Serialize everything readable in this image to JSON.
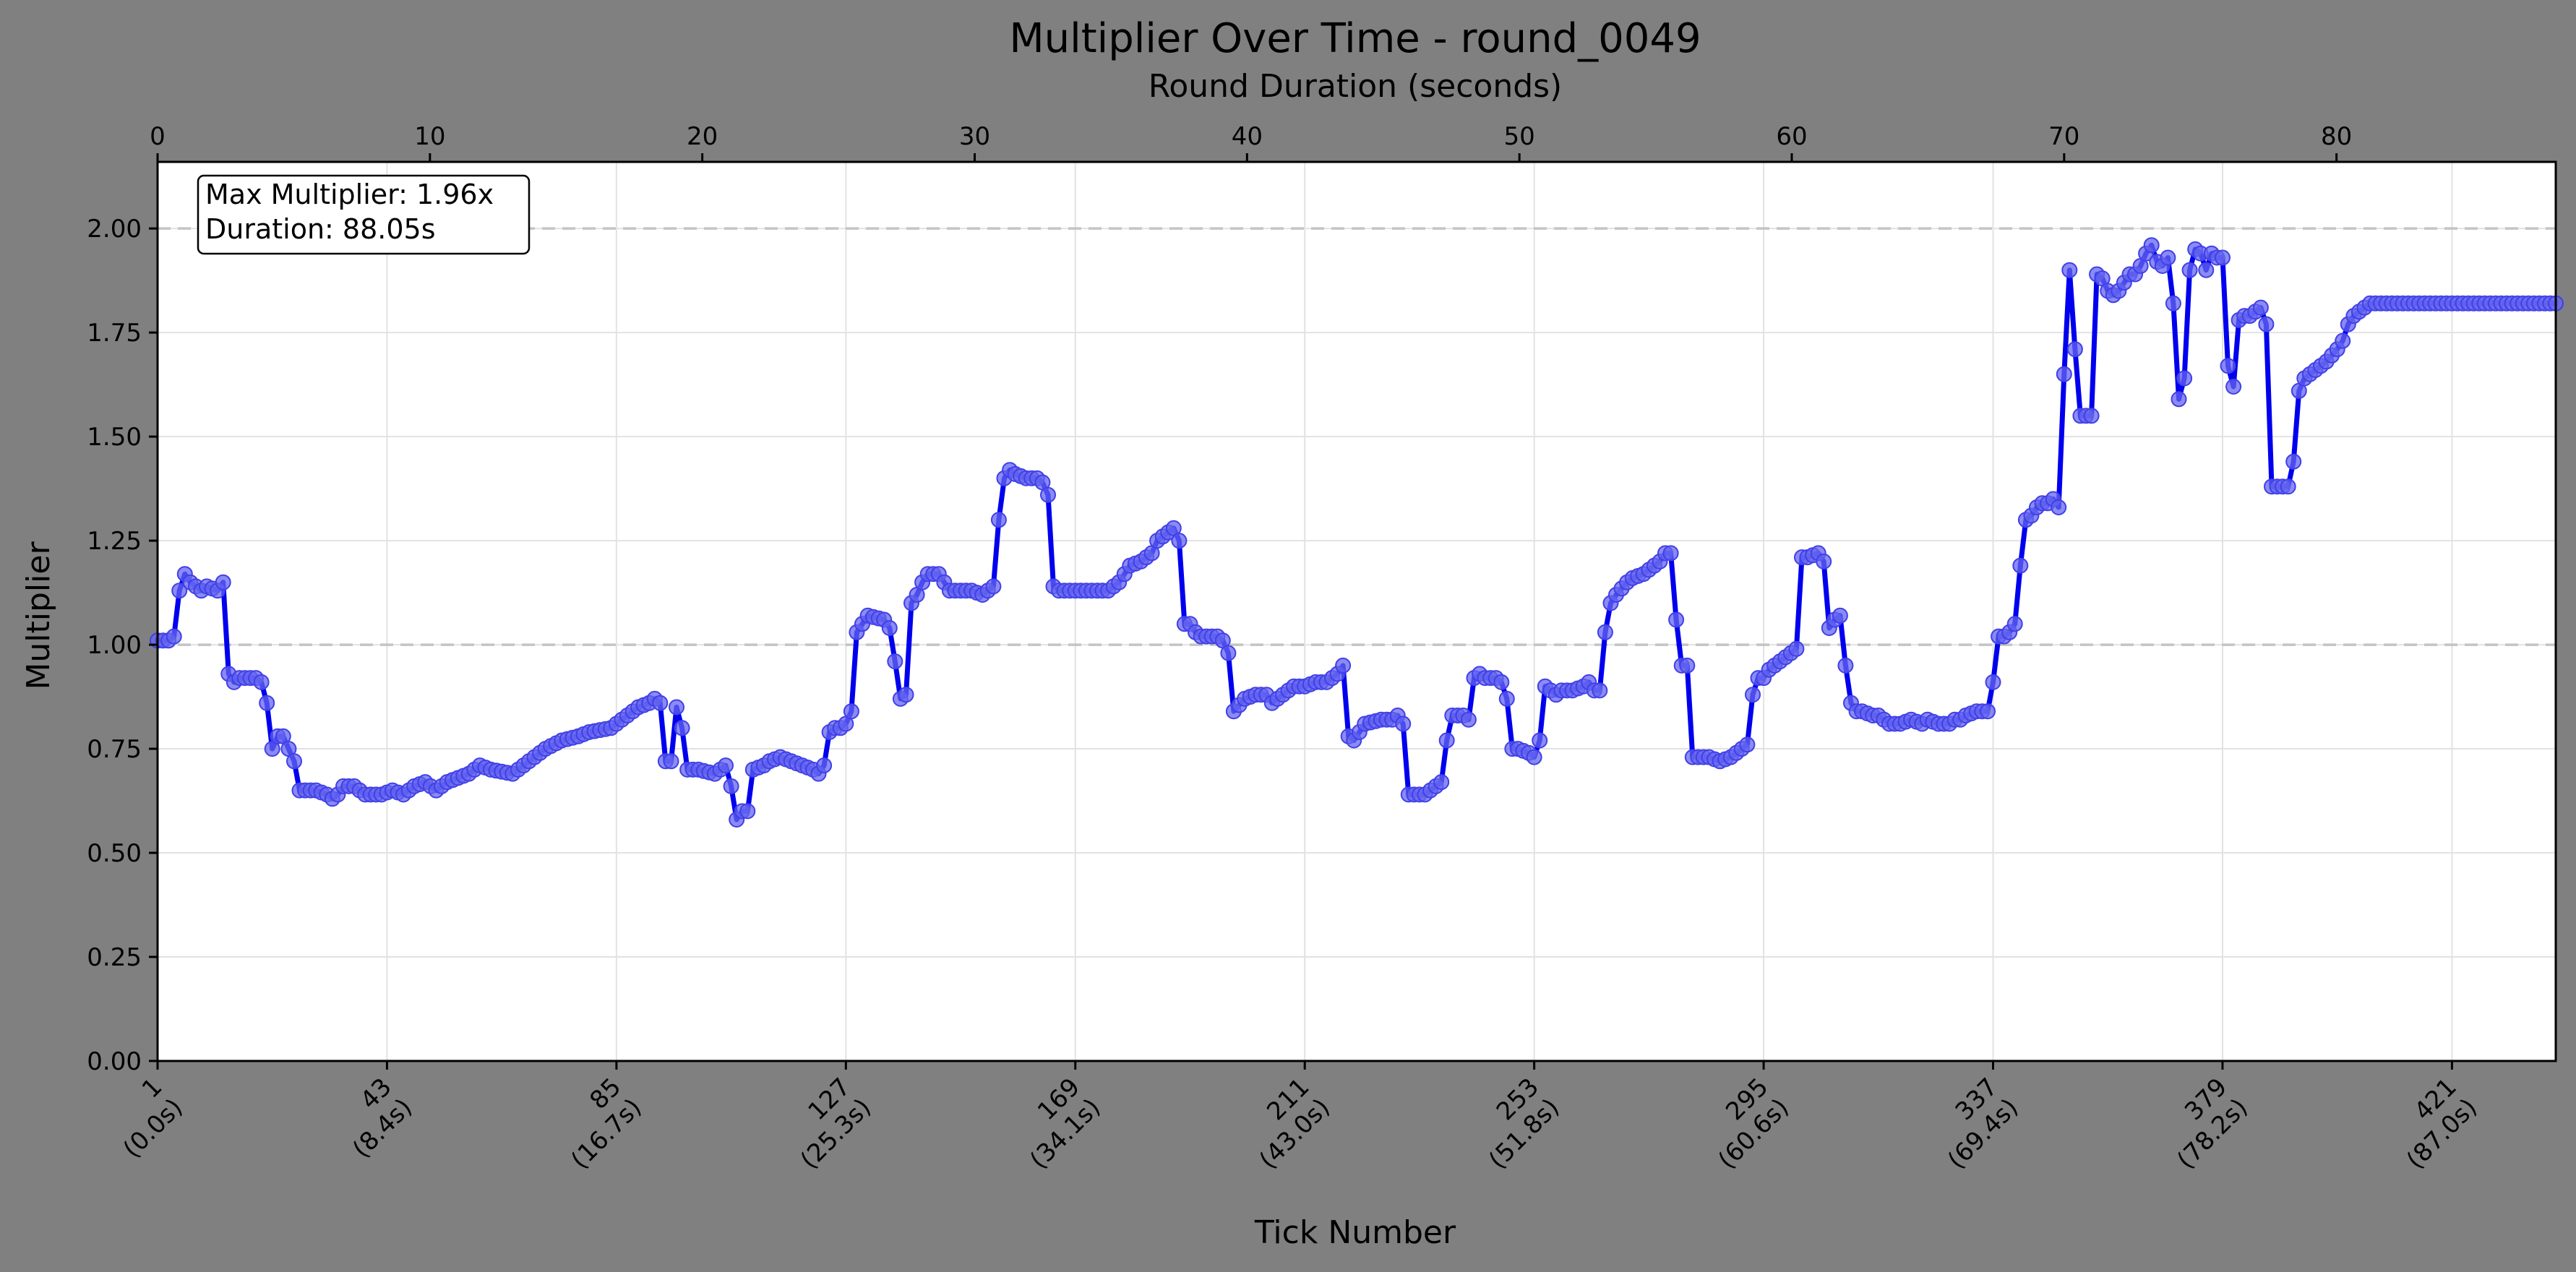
{
  "chart_data": {
    "type": "line",
    "title": "Multiplier Over Time - round_0049",
    "top_xlabel": "Round Duration (seconds)",
    "xlabel": "Tick Number",
    "ylabel": "Multiplier",
    "xlim_ticks": [
      1,
      440
    ],
    "xlim_seconds": [
      0,
      88.05
    ],
    "ylim": [
      0,
      2.16
    ],
    "y_ticks": [
      "0.00",
      "0.25",
      "0.50",
      "0.75",
      "1.00",
      "1.25",
      "1.50",
      "1.75",
      "2.00"
    ],
    "x_ticks": [
      {
        "tick": 1,
        "label": "1",
        "sublabel": "(0.0s)"
      },
      {
        "tick": 43,
        "label": "43",
        "sublabel": "(8.4s)"
      },
      {
        "tick": 85,
        "label": "85",
        "sublabel": "(16.7s)"
      },
      {
        "tick": 127,
        "label": "127",
        "sublabel": "(25.3s)"
      },
      {
        "tick": 169,
        "label": "169",
        "sublabel": "(34.1s)"
      },
      {
        "tick": 211,
        "label": "211",
        "sublabel": "(43.0s)"
      },
      {
        "tick": 253,
        "label": "253",
        "sublabel": "(51.8s)"
      },
      {
        "tick": 295,
        "label": "295",
        "sublabel": "(60.6s)"
      },
      {
        "tick": 337,
        "label": "337",
        "sublabel": "(69.4s)"
      },
      {
        "tick": 379,
        "label": "379",
        "sublabel": "(78.2s)"
      },
      {
        "tick": 421,
        "label": "421",
        "sublabel": "(87.0s)"
      }
    ],
    "top_x_ticks": [
      "0",
      "10",
      "20",
      "30",
      "40",
      "50",
      "60",
      "70",
      "80"
    ],
    "reference_lines": [
      1.0,
      2.0
    ],
    "grid": true,
    "series_color": "#0000ee",
    "marker_color": "#6464f0",
    "annotation": {
      "line1": "Max Multiplier: 1.96x",
      "line2": "Duration: 88.05s",
      "placement": "top-left"
    },
    "keypoints": [
      [
        1,
        1.01
      ],
      [
        3,
        1.01
      ],
      [
        4,
        1.02
      ],
      [
        5,
        1.13
      ],
      [
        6,
        1.17
      ],
      [
        7,
        1.15
      ],
      [
        9,
        1.13
      ],
      [
        10,
        1.14
      ],
      [
        12,
        1.13
      ],
      [
        13,
        1.15
      ],
      [
        14,
        0.93
      ],
      [
        15,
        0.91
      ],
      [
        16,
        0.92
      ],
      [
        19,
        0.92
      ],
      [
        20,
        0.91
      ],
      [
        21,
        0.86
      ],
      [
        22,
        0.75
      ],
      [
        23,
        0.78
      ],
      [
        24,
        0.78
      ],
      [
        26,
        0.72
      ],
      [
        27,
        0.65
      ],
      [
        30,
        0.65
      ],
      [
        32,
        0.64
      ],
      [
        33,
        0.63
      ],
      [
        34,
        0.64
      ],
      [
        35,
        0.66
      ],
      [
        37,
        0.66
      ],
      [
        39,
        0.64
      ],
      [
        42,
        0.64
      ],
      [
        44,
        0.65
      ],
      [
        46,
        0.64
      ],
      [
        48,
        0.66
      ],
      [
        50,
        0.67
      ],
      [
        52,
        0.65
      ],
      [
        54,
        0.67
      ],
      [
        56,
        0.68
      ],
      [
        58,
        0.69
      ],
      [
        60,
        0.71
      ],
      [
        62,
        0.7
      ],
      [
        66,
        0.69
      ],
      [
        68,
        0.71
      ],
      [
        70,
        0.73
      ],
      [
        72,
        0.75
      ],
      [
        75,
        0.77
      ],
      [
        78,
        0.78
      ],
      [
        80,
        0.79
      ],
      [
        84,
        0.8
      ],
      [
        87,
        0.83
      ],
      [
        89,
        0.85
      ],
      [
        91,
        0.86
      ],
      [
        92,
        0.87
      ],
      [
        93,
        0.86
      ],
      [
        94,
        0.72
      ],
      [
        95,
        0.72
      ],
      [
        96,
        0.85
      ],
      [
        97,
        0.8
      ],
      [
        98,
        0.7
      ],
      [
        100,
        0.7
      ],
      [
        103,
        0.69
      ],
      [
        104,
        0.7
      ],
      [
        105,
        0.71
      ],
      [
        106,
        0.66
      ],
      [
        107,
        0.58
      ],
      [
        108,
        0.6
      ],
      [
        109,
        0.6
      ],
      [
        110,
        0.7
      ],
      [
        112,
        0.71
      ],
      [
        113,
        0.72
      ],
      [
        115,
        0.73
      ],
      [
        117,
        0.72
      ],
      [
        119,
        0.71
      ],
      [
        121,
        0.7
      ],
      [
        122,
        0.69
      ],
      [
        123,
        0.71
      ],
      [
        124,
        0.79
      ],
      [
        125,
        0.8
      ],
      [
        126,
        0.8
      ],
      [
        127,
        0.81
      ],
      [
        128,
        0.84
      ],
      [
        129,
        1.03
      ],
      [
        130,
        1.05
      ],
      [
        131,
        1.07
      ],
      [
        134,
        1.06
      ],
      [
        135,
        1.04
      ],
      [
        136,
        0.96
      ],
      [
        137,
        0.87
      ],
      [
        138,
        0.88
      ],
      [
        139,
        1.1
      ],
      [
        140,
        1.12
      ],
      [
        141,
        1.15
      ],
      [
        142,
        1.17
      ],
      [
        144,
        1.17
      ],
      [
        145,
        1.15
      ],
      [
        146,
        1.13
      ],
      [
        148,
        1.13
      ],
      [
        150,
        1.13
      ],
      [
        152,
        1.12
      ],
      [
        154,
        1.14
      ],
      [
        155,
        1.3
      ],
      [
        156,
        1.4
      ],
      [
        157,
        1.42
      ],
      [
        158,
        1.41
      ],
      [
        160,
        1.4
      ],
      [
        162,
        1.4
      ],
      [
        163,
        1.39
      ],
      [
        164,
        1.36
      ],
      [
        165,
        1.14
      ],
      [
        166,
        1.13
      ],
      [
        169,
        1.13
      ],
      [
        171,
        1.13
      ],
      [
        173,
        1.13
      ],
      [
        175,
        1.13
      ],
      [
        177,
        1.15
      ],
      [
        178,
        1.17
      ],
      [
        179,
        1.19
      ],
      [
        181,
        1.2
      ],
      [
        183,
        1.22
      ],
      [
        184,
        1.25
      ],
      [
        186,
        1.27
      ],
      [
        187,
        1.28
      ],
      [
        188,
        1.25
      ],
      [
        189,
        1.05
      ],
      [
        190,
        1.05
      ],
      [
        191,
        1.03
      ],
      [
        192,
        1.02
      ],
      [
        195,
        1.02
      ],
      [
        196,
        1.01
      ],
      [
        197,
        0.98
      ],
      [
        198,
        0.84
      ],
      [
        200,
        0.87
      ],
      [
        202,
        0.88
      ],
      [
        204,
        0.88
      ],
      [
        205,
        0.86
      ],
      [
        206,
        0.87
      ],
      [
        208,
        0.89
      ],
      [
        209,
        0.9
      ],
      [
        211,
        0.9
      ],
      [
        213,
        0.91
      ],
      [
        215,
        0.91
      ],
      [
        216,
        0.92
      ],
      [
        217,
        0.93
      ],
      [
        218,
        0.95
      ],
      [
        219,
        0.78
      ],
      [
        220,
        0.77
      ],
      [
        221,
        0.79
      ],
      [
        222,
        0.81
      ],
      [
        225,
        0.82
      ],
      [
        227,
        0.82
      ],
      [
        228,
        0.83
      ],
      [
        229,
        0.81
      ],
      [
        230,
        0.64
      ],
      [
        231,
        0.64
      ],
      [
        233,
        0.64
      ],
      [
        235,
        0.66
      ],
      [
        236,
        0.67
      ],
      [
        237,
        0.77
      ],
      [
        238,
        0.83
      ],
      [
        240,
        0.83
      ],
      [
        241,
        0.82
      ],
      [
        242,
        0.92
      ],
      [
        243,
        0.93
      ],
      [
        244,
        0.92
      ],
      [
        246,
        0.92
      ],
      [
        247,
        0.91
      ],
      [
        248,
        0.87
      ],
      [
        249,
        0.75
      ],
      [
        250,
        0.75
      ],
      [
        252,
        0.74
      ],
      [
        253,
        0.73
      ],
      [
        254,
        0.77
      ],
      [
        255,
        0.9
      ],
      [
        256,
        0.89
      ],
      [
        257,
        0.88
      ],
      [
        258,
        0.89
      ],
      [
        260,
        0.89
      ],
      [
        262,
        0.9
      ],
      [
        263,
        0.91
      ],
      [
        264,
        0.89
      ],
      [
        265,
        0.89
      ],
      [
        266,
        1.03
      ],
      [
        267,
        1.1
      ],
      [
        268,
        1.12
      ],
      [
        270,
        1.15
      ],
      [
        271,
        1.16
      ],
      [
        273,
        1.17
      ],
      [
        274,
        1.18
      ],
      [
        275,
        1.19
      ],
      [
        276,
        1.2
      ],
      [
        277,
        1.22
      ],
      [
        278,
        1.22
      ],
      [
        279,
        1.06
      ],
      [
        280,
        0.95
      ],
      [
        281,
        0.95
      ],
      [
        282,
        0.73
      ],
      [
        283,
        0.73
      ],
      [
        285,
        0.73
      ],
      [
        287,
        0.72
      ],
      [
        289,
        0.73
      ],
      [
        290,
        0.74
      ],
      [
        291,
        0.75
      ],
      [
        292,
        0.76
      ],
      [
        293,
        0.88
      ],
      [
        294,
        0.92
      ],
      [
        295,
        0.92
      ],
      [
        296,
        0.94
      ],
      [
        298,
        0.96
      ],
      [
        299,
        0.97
      ],
      [
        300,
        0.98
      ],
      [
        301,
        0.99
      ],
      [
        302,
        1.21
      ],
      [
        303,
        1.21
      ],
      [
        305,
        1.22
      ],
      [
        306,
        1.2
      ],
      [
        307,
        1.04
      ],
      [
        308,
        1.06
      ],
      [
        309,
        1.07
      ],
      [
        310,
        0.95
      ],
      [
        311,
        0.86
      ],
      [
        312,
        0.84
      ],
      [
        313,
        0.84
      ],
      [
        315,
        0.83
      ],
      [
        316,
        0.83
      ],
      [
        317,
        0.82
      ],
      [
        318,
        0.81
      ],
      [
        320,
        0.81
      ],
      [
        322,
        0.82
      ],
      [
        324,
        0.81
      ],
      [
        325,
        0.82
      ],
      [
        327,
        0.81
      ],
      [
        329,
        0.81
      ],
      [
        330,
        0.82
      ],
      [
        331,
        0.82
      ],
      [
        332,
        0.83
      ],
      [
        334,
        0.84
      ],
      [
        335,
        0.84
      ],
      [
        336,
        0.84
      ],
      [
        337,
        0.91
      ],
      [
        338,
        1.02
      ],
      [
        339,
        1.02
      ],
      [
        340,
        1.03
      ],
      [
        341,
        1.05
      ],
      [
        342,
        1.19
      ],
      [
        343,
        1.3
      ],
      [
        344,
        1.31
      ],
      [
        345,
        1.33
      ],
      [
        346,
        1.34
      ],
      [
        347,
        1.34
      ],
      [
        348,
        1.35
      ],
      [
        349,
        1.33
      ],
      [
        350,
        1.65
      ],
      [
        351,
        1.9
      ],
      [
        352,
        1.71
      ],
      [
        353,
        1.55
      ],
      [
        354,
        1.55
      ],
      [
        355,
        1.55
      ],
      [
        356,
        1.89
      ],
      [
        357,
        1.88
      ],
      [
        358,
        1.85
      ],
      [
        359,
        1.84
      ],
      [
        360,
        1.85
      ],
      [
        361,
        1.87
      ],
      [
        362,
        1.89
      ],
      [
        363,
        1.89
      ],
      [
        364,
        1.91
      ],
      [
        365,
        1.94
      ],
      [
        366,
        1.96
      ],
      [
        367,
        1.92
      ],
      [
        368,
        1.91
      ],
      [
        369,
        1.93
      ],
      [
        370,
        1.82
      ],
      [
        371,
        1.59
      ],
      [
        372,
        1.64
      ],
      [
        373,
        1.9
      ],
      [
        374,
        1.95
      ],
      [
        375,
        1.94
      ],
      [
        376,
        1.9
      ],
      [
        377,
        1.94
      ],
      [
        378,
        1.93
      ],
      [
        379,
        1.93
      ],
      [
        380,
        1.67
      ],
      [
        381,
        1.62
      ],
      [
        382,
        1.78
      ],
      [
        383,
        1.79
      ],
      [
        384,
        1.79
      ],
      [
        385,
        1.8
      ],
      [
        386,
        1.81
      ],
      [
        387,
        1.77
      ],
      [
        388,
        1.38
      ],
      [
        389,
        1.38
      ],
      [
        390,
        1.38
      ],
      [
        391,
        1.38
      ],
      [
        392,
        1.44
      ],
      [
        393,
        1.61
      ],
      [
        394,
        1.64
      ],
      [
        395,
        1.65
      ],
      [
        396,
        1.66
      ],
      [
        398,
        1.68
      ],
      [
        400,
        1.71
      ],
      [
        401,
        1.73
      ],
      [
        402,
        1.77
      ],
      [
        403,
        1.79
      ],
      [
        404,
        1.8
      ],
      [
        405,
        1.81
      ],
      [
        406,
        1.82
      ],
      [
        408,
        1.82
      ],
      [
        440,
        1.82
      ]
    ]
  }
}
